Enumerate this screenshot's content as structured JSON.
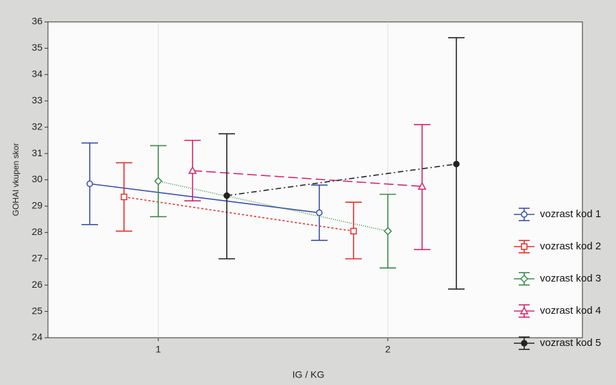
{
  "chart_data": {
    "type": "line",
    "xlabel": "IG / KG",
    "ylabel": "GOHAI vkupen skor",
    "categories": [
      "1",
      "2"
    ],
    "ylim": [
      24,
      36
    ],
    "yticks": [
      24,
      25,
      26,
      27,
      28,
      29,
      30,
      31,
      32,
      33,
      34,
      35,
      36
    ],
    "grid": true,
    "legend": "right",
    "series": [
      {
        "name": "vozrast kod 1",
        "color": "#3b4fa8",
        "marker": "circle",
        "dash": "none",
        "values": [
          29.85,
          28.75
        ],
        "upper": [
          31.4,
          29.8
        ],
        "lower": [
          28.3,
          27.7
        ]
      },
      {
        "name": "vozrast kod 2",
        "color": "#e0302c",
        "marker": "square",
        "dash": "3,3",
        "values": [
          29.35,
          28.05
        ],
        "upper": [
          30.65,
          29.15
        ],
        "lower": [
          28.05,
          27.0
        ]
      },
      {
        "name": "vozrast kod 3",
        "color": "#3c8a4c",
        "marker": "diamond",
        "dash": "1,2",
        "values": [
          29.95,
          28.05
        ],
        "upper": [
          31.3,
          29.45
        ],
        "lower": [
          28.6,
          26.65
        ]
      },
      {
        "name": "vozrast kod 4",
        "color": "#d4246a",
        "marker": "triangle",
        "dash": "14,6",
        "values": [
          30.35,
          29.75
        ],
        "upper": [
          31.5,
          32.1
        ],
        "lower": [
          29.2,
          27.35
        ]
      },
      {
        "name": "vozrast kod 5",
        "color": "#222222",
        "marker": "dot",
        "dash": "8,4,2,4",
        "values": [
          29.4,
          30.6
        ],
        "upper": [
          31.75,
          35.4
        ],
        "lower": [
          27.0,
          25.85
        ]
      }
    ]
  }
}
